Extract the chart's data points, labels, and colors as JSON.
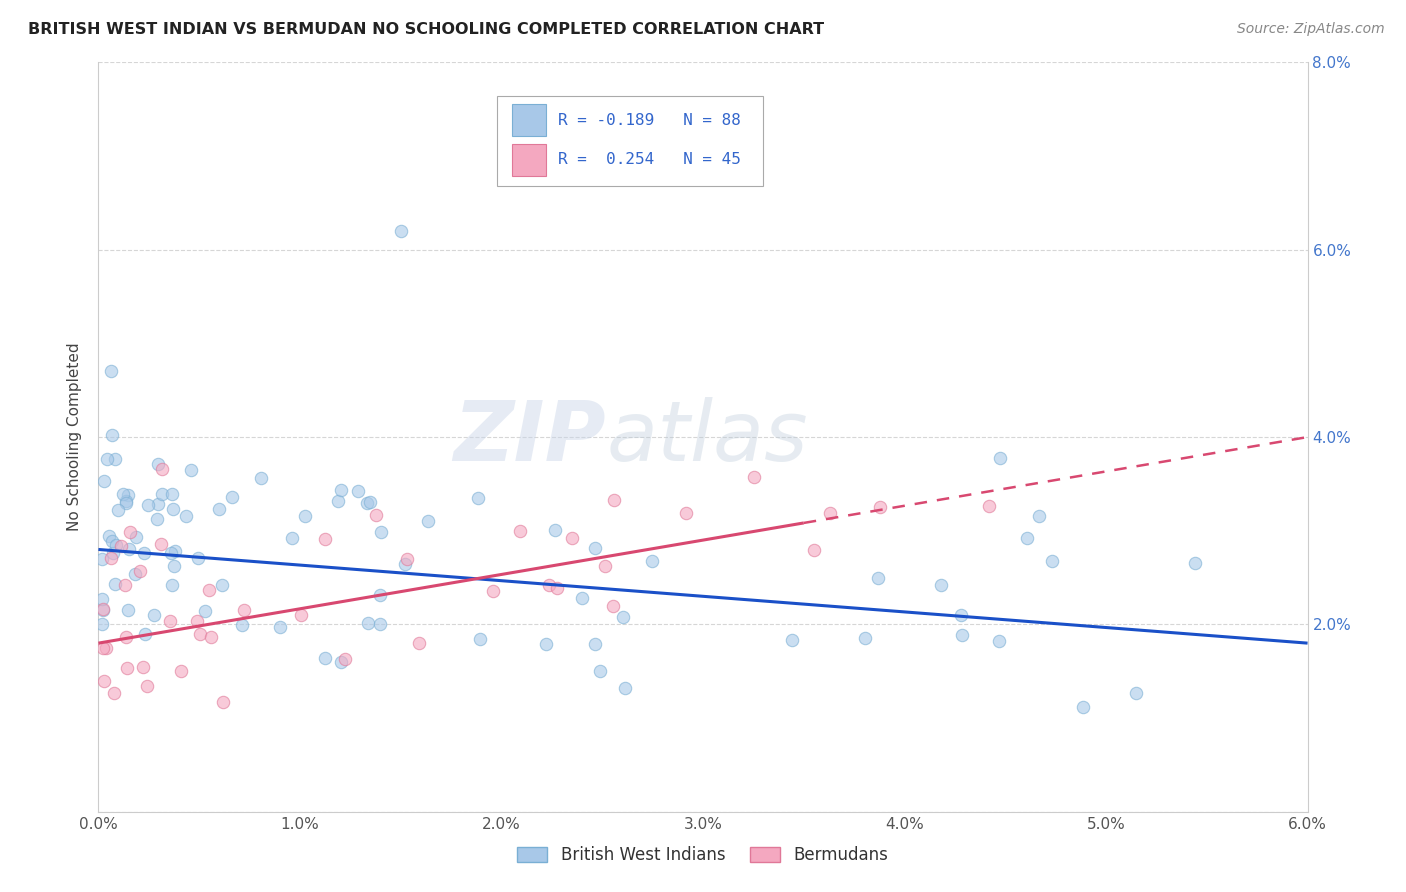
{
  "title": "BRITISH WEST INDIAN VS BERMUDAN NO SCHOOLING COMPLETED CORRELATION CHART",
  "source": "Source: ZipAtlas.com",
  "ylabel": "No Schooling Completed",
  "xlim": [
    0.0,
    0.06
  ],
  "ylim": [
    0.0,
    0.08
  ],
  "xticks": [
    0.0,
    0.01,
    0.02,
    0.03,
    0.04,
    0.05,
    0.06
  ],
  "yticks": [
    0.0,
    0.02,
    0.04,
    0.06,
    0.08
  ],
  "xtick_labels": [
    "0.0%",
    "1.0%",
    "2.0%",
    "3.0%",
    "4.0%",
    "5.0%",
    "6.0%"
  ],
  "ytick_labels_right": [
    "",
    "2.0%",
    "4.0%",
    "6.0%",
    "8.0%"
  ],
  "blue_R": "-0.189",
  "blue_N": "88",
  "pink_R": "0.254",
  "pink_N": "45",
  "blue_line_x": [
    0.0,
    0.06
  ],
  "blue_line_y": [
    0.028,
    0.018
  ],
  "pink_line_x": [
    0.0,
    0.06
  ],
  "pink_line_y": [
    0.018,
    0.04
  ],
  "scatter_alpha": 0.6,
  "scatter_size": 80,
  "scatter_edgewidth": 0.8,
  "blue_color": "#a8c8e8",
  "blue_edge_color": "#7aafd4",
  "pink_color": "#f4a8c0",
  "pink_edge_color": "#e07898",
  "blue_line_color": "#1a50c8",
  "pink_line_color": "#d84870",
  "watermark_zip": "ZIP",
  "watermark_atlas": "atlas",
  "grid_color": "#cccccc",
  "grid_alpha": 0.8
}
